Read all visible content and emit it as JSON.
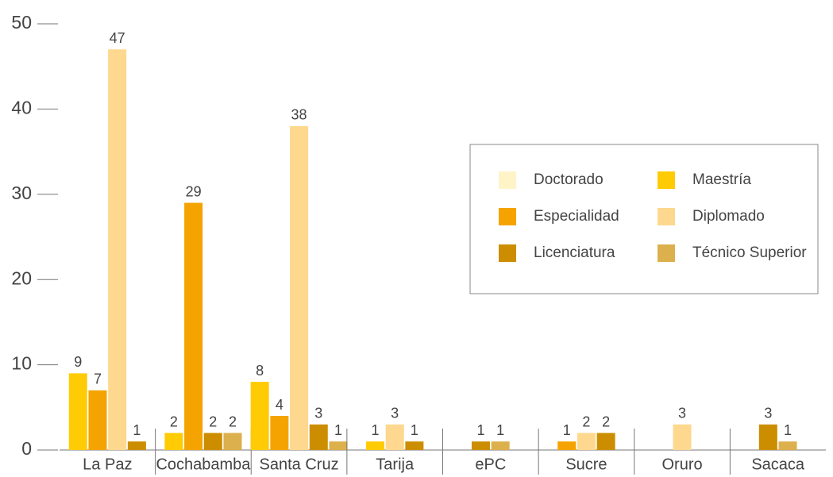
{
  "chart_data": {
    "type": "bar",
    "categories": [
      "La Paz",
      "Cochabamba",
      "Santa Cruz",
      "Tarija",
      "ePC",
      "Sucre",
      "Oruro",
      "Sacaca"
    ],
    "series": [
      {
        "name": "Doctorado",
        "color": "#fff3c8",
        "values": [
          null,
          null,
          null,
          null,
          null,
          null,
          null,
          null
        ]
      },
      {
        "name": "Maestría",
        "color": "#ffcb05",
        "values": [
          9,
          2,
          8,
          1,
          null,
          null,
          null,
          null
        ]
      },
      {
        "name": "Especialidad",
        "color": "#f5a300",
        "values": [
          7,
          29,
          4,
          null,
          null,
          1,
          null,
          null
        ]
      },
      {
        "name": "Diplomado",
        "color": "#fdd88e",
        "values": [
          47,
          null,
          38,
          3,
          null,
          2,
          3,
          null
        ]
      },
      {
        "name": "Licenciatura",
        "color": "#cc8e00",
        "values": [
          1,
          2,
          3,
          1,
          1,
          2,
          null,
          3
        ]
      },
      {
        "name": "Técnico Superior",
        "color": "#dcb04c",
        "values": [
          null,
          2,
          1,
          null,
          1,
          null,
          null,
          1
        ]
      }
    ],
    "ylim": [
      0,
      50
    ],
    "yticks": [
      0,
      10,
      20,
      30,
      40,
      50
    ]
  }
}
